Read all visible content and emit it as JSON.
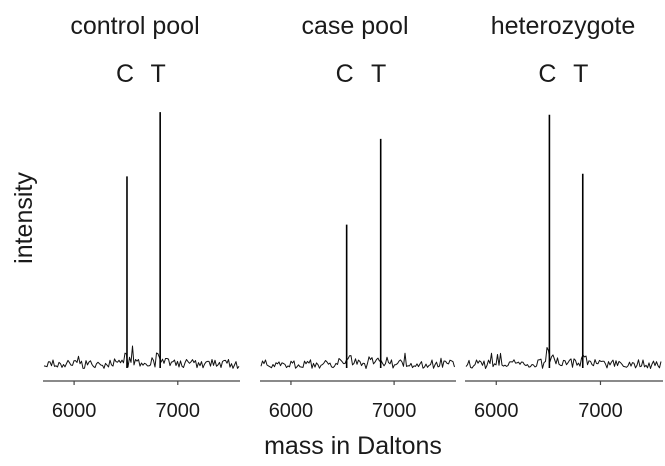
{
  "chart_data": {
    "type": "line",
    "figure_kind": "mass spectra (three panels)",
    "xlabel": "mass in Daltons",
    "ylabel": "intensity",
    "panels": [
      {
        "title": "control pool",
        "xlim": [
          5700,
          7600
        ],
        "xticks": [
          6000,
          7000
        ],
        "peaks": [
          {
            "label": "C",
            "x": 6510,
            "height": 0.7
          },
          {
            "label": "T",
            "x": 6830,
            "height": 0.94
          }
        ]
      },
      {
        "title": "case pool",
        "xlim": [
          5700,
          7600
        ],
        "xticks": [
          6000,
          7000
        ],
        "peaks": [
          {
            "label": "C",
            "x": 6540,
            "height": 0.52
          },
          {
            "label": "T",
            "x": 6870,
            "height": 0.84
          }
        ]
      },
      {
        "title": "heterozygote",
        "xlim": [
          5700,
          7600
        ],
        "xticks": [
          6000,
          7000
        ],
        "peaks": [
          {
            "label": "C",
            "x": 6510,
            "height": 0.93
          },
          {
            "label": "T",
            "x": 6830,
            "height": 0.71
          }
        ]
      }
    ]
  },
  "colors": {
    "trace": "#111111",
    "axis": "#444444",
    "text": "#1a1a1a",
    "background": "#ffffff"
  }
}
